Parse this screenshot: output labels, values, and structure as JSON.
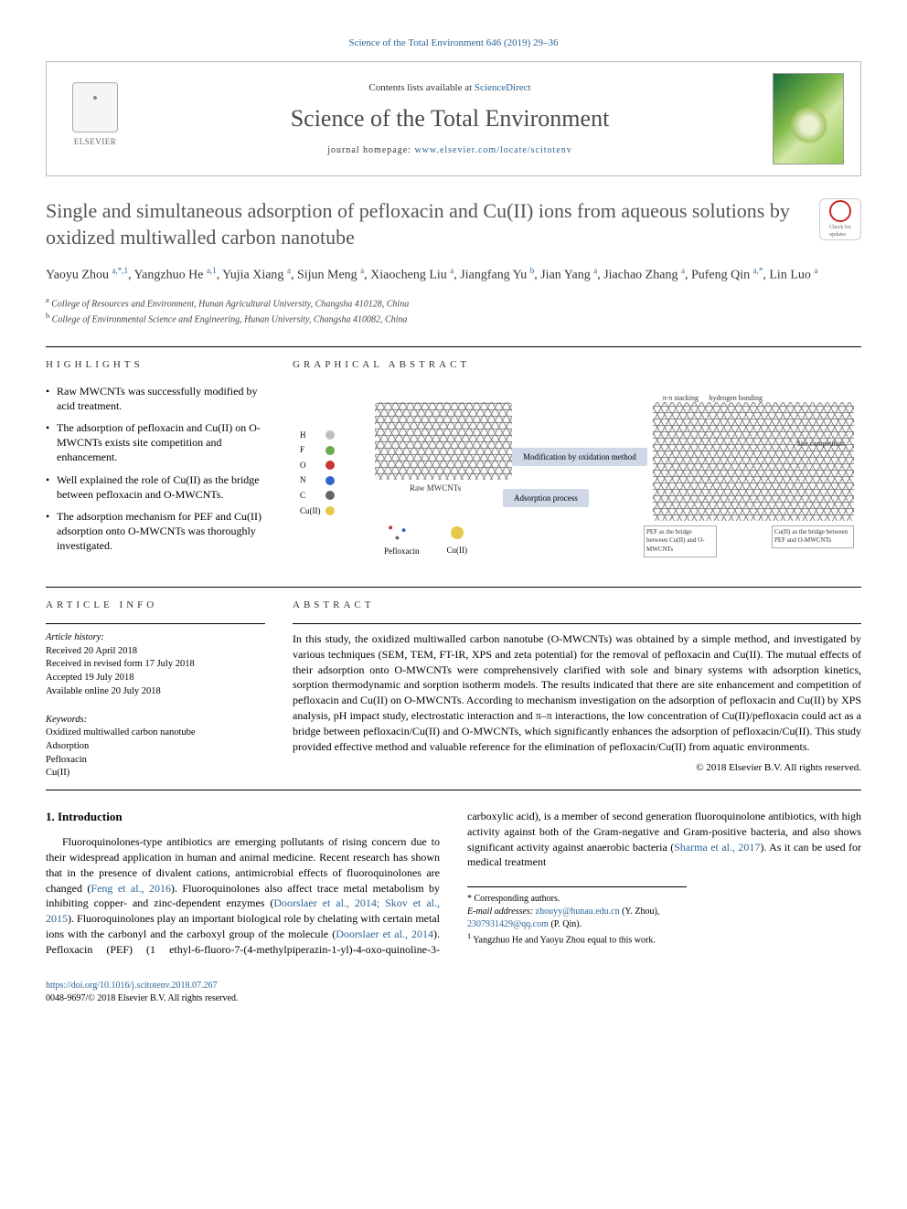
{
  "top_citation": "Science of the Total Environment 646 (2019) 29–36",
  "header": {
    "contents_prefix": "Contents lists available at ",
    "contents_link": "ScienceDirect",
    "journal": "Science of the Total Environment",
    "homepage_prefix": "journal homepage: ",
    "homepage_url": "www.elsevier.com/locate/scitotenv",
    "publisher": "ELSEVIER"
  },
  "crossmark": {
    "line1": "Check for",
    "line2": "updates"
  },
  "title": "Single and simultaneous adsorption of pefloxacin and Cu(II) ions from aqueous solutions by oxidized multiwalled carbon nanotube",
  "authors_html": "Yaoyu Zhou <sup>a,*,1</sup>, Yangzhuo He <sup>a,1</sup>, Yujia Xiang <sup>a</sup>, Sijun Meng <sup>a</sup>, Xiaocheng Liu <sup>a</sup>, Jiangfang Yu <sup>b</sup>, Jian Yang <sup>a</sup>, Jiachao Zhang <sup>a</sup>, Pufeng Qin <sup>a,*</sup>, Lin Luo <sup>a</sup>",
  "affiliations": [
    {
      "sup": "a",
      "text": "College of Resources and Environment, Hunan Agricultural University, Changsha 410128, China"
    },
    {
      "sup": "b",
      "text": "College of Environmental Science and Engineering, Hunan University, Changsha 410082, China"
    }
  ],
  "highlights_heading": "HIGHLIGHTS",
  "highlights": [
    "Raw MWCNTs was successfully modified by acid treatment.",
    "The adsorption of pefloxacin and Cu(II) on O-MWCNTs exists site competition and enhancement.",
    "Well explained the role of Cu(II) as the bridge between pefloxacin and O-MWCNTs.",
    "The adsorption mechanism for PEF and Cu(II) adsorption onto O-MWCNTs was thoroughly investigated."
  ],
  "gabstract_heading": "GRAPHICAL ABSTRACT",
  "graphical": {
    "legend": [
      {
        "label": "H",
        "color": "#bfbfbf"
      },
      {
        "label": "F",
        "color": "#6aa84f"
      },
      {
        "label": "O",
        "color": "#cc3333"
      },
      {
        "label": "N",
        "color": "#3366cc"
      },
      {
        "label": "C",
        "color": "#666666"
      },
      {
        "label": "Cu(II)",
        "color": "#e6c84a"
      }
    ],
    "raw_label": "Raw MWCNTs",
    "mod_box": "Modification by oxidation method",
    "ads_box": "Adsorption process",
    "pef_label": "Pefloxacin",
    "cu_label": "Cu(II)",
    "right_small_labels": [
      "π-π stacking",
      "hydrogen bonding",
      "Site competition"
    ],
    "bridge_left": "PEF as the bridge between Cu(II) and O-MWCNTs",
    "bridge_right": "Cu(II) as the bridge between PEF and O-MWCNTs"
  },
  "article_info_heading": "ARTICLE INFO",
  "article_history_label": "Article history:",
  "article_history": [
    "Received 20 April 2018",
    "Received in revised form 17 July 2018",
    "Accepted 19 July 2018",
    "Available online 20 July 2018"
  ],
  "keywords_label": "Keywords:",
  "keywords": [
    "Oxidized multiwalled carbon nanotube",
    "Adsorption",
    "Pefloxacin",
    "Cu(II)"
  ],
  "abstract_heading": "ABSTRACT",
  "abstract": "In this study, the oxidized multiwalled carbon nanotube (O-MWCNTs) was obtained by a simple method, and investigated by various techniques (SEM, TEM, FT-IR, XPS and zeta potential) for the removal of pefloxacin and Cu(II). The mutual effects of their adsorption onto O-MWCNTs were comprehensively clarified with sole and binary systems with adsorption kinetics, sorption thermodynamic and sorption isotherm models. The results indicated that there are site enhancement and competition of pefloxacin and Cu(II) on O-MWCNTs. According to mechanism investigation on the adsorption of pefloxacin and Cu(II) by XPS analysis, pH impact study, electrostatic interaction and π–π interactions, the low concentration of Cu(II)/pefloxacin could act as a bridge between pefloxacin/Cu(II) and O-MWCNTs, which significantly enhances the adsorption of pefloxacin/Cu(II). This study provided effective method and valuable reference for the elimination of pefloxacin/Cu(II) from aquatic environments.",
  "copyright": "© 2018 Elsevier B.V. All rights reserved.",
  "intro_heading": "1. Introduction",
  "intro_para1": "Fluoroquinolones-type antibiotics are emerging pollutants of rising concern due to their widespread application in human and animal medicine. Recent research has shown that in the presence of divalent cations, antimicrobial effects of fluoroquinolones are changed (",
  "intro_cite1": "Feng et al.,",
  "intro_cont_2016": "2016",
  "intro_para2a": "). Fluoroquinolones also affect trace metal metabolism by inhibiting copper- and zinc-dependent enzymes (",
  "intro_cite2": "Doorslaer et al., 2014; Skov et al., 2015",
  "intro_para2b": "). Fluoroquinolones play an important biological role by chelating with certain metal ions with the carbonyl and the carboxyl group of the molecule (",
  "intro_cite3": "Doorslaer et al., 2014",
  "intro_para2c": "). Pefloxacin (PEF) (1 ethyl-6-fluoro-7-(4-methylpiperazin-1-yl)-4-oxo-quinoline-3-carboxylic acid), is a member of second generation fluoroquinolone antibiotics, with high activity against both of the Gram-negative and Gram-positive bacteria, and also shows significant activity against anaerobic bacteria (",
  "intro_cite4": "Sharma et al., 2017",
  "intro_para2d": "). As it can be used for medical treatment",
  "footnotes": {
    "corr": "* Corresponding authors.",
    "email_label": "E-mail addresses: ",
    "email1": "zhouyy@hunau.edu.cn",
    "email1_who": " (Y. Zhou), ",
    "email2": "2307931429@qq.com",
    "email2_who": " (P. Qin).",
    "equal": "Yangzhuo He and Yaoyu Zhou equal to this work.",
    "equal_sup": "1"
  },
  "bottom": {
    "doi": "https://doi.org/10.1016/j.scitotenv.2018.07.267",
    "issn_line": "0048-9697/© 2018 Elsevier B.V. All rights reserved."
  },
  "colors": {
    "link": "#2a6496",
    "cover_green1": "#1a6b3a",
    "cover_green2": "#7fb848"
  }
}
